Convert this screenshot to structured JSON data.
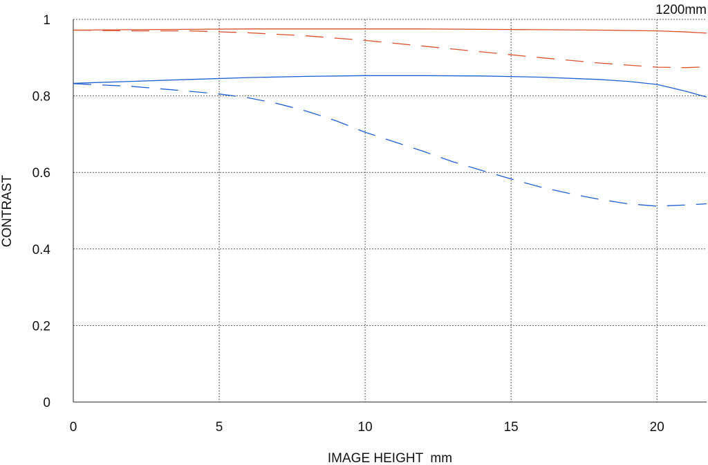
{
  "chart_data": {
    "type": "line",
    "title": "",
    "corner_label": "1200mm",
    "xlabel": "IMAGE HEIGHT  mm",
    "ylabel": "CONTRAST",
    "xlim": [
      0,
      21.7
    ],
    "ylim": [
      0,
      1
    ],
    "xticks": [
      0,
      5,
      10,
      15,
      20
    ],
    "xtick_labels": [
      "0",
      "5",
      "10",
      "15",
      "20"
    ],
    "yticks": [
      0,
      0.2,
      0.4,
      0.6,
      0.8,
      1
    ],
    "ytick_labels": [
      "0",
      "0.2",
      "0.4",
      "0.6",
      "0.8",
      "1"
    ],
    "grid": true,
    "legend": "none",
    "series": [
      {
        "color": "#d9502b",
        "dash": "solid",
        "x": [
          0,
          2,
          4,
          6,
          8,
          10,
          12,
          14,
          16,
          18,
          20,
          21,
          21.7
        ],
        "y": [
          0.972,
          0.973,
          0.974,
          0.975,
          0.975,
          0.975,
          0.975,
          0.974,
          0.973,
          0.972,
          0.97,
          0.967,
          0.964
        ]
      },
      {
        "color": "#d9502b",
        "dash": "dashed",
        "x": [
          0,
          2,
          4,
          6,
          8,
          10,
          12,
          14,
          16,
          18,
          20,
          21,
          21.7
        ],
        "y": [
          0.972,
          0.97,
          0.97,
          0.965,
          0.957,
          0.945,
          0.93,
          0.915,
          0.9,
          0.886,
          0.875,
          0.874,
          0.876
        ]
      },
      {
        "color": "#1a5fcf",
        "dash": "solid",
        "x": [
          0,
          2,
          4,
          6,
          8,
          10,
          12,
          14,
          16,
          18,
          19,
          20,
          21,
          21.7
        ],
        "y": [
          0.833,
          0.838,
          0.843,
          0.848,
          0.851,
          0.853,
          0.853,
          0.852,
          0.849,
          0.843,
          0.838,
          0.83,
          0.812,
          0.797
        ]
      },
      {
        "color": "#1a5fcf",
        "dash": "dashed",
        "x": [
          0,
          2,
          4,
          5,
          6,
          7,
          8,
          9,
          10,
          11,
          12,
          13,
          14,
          15,
          16,
          17,
          18,
          19,
          20,
          21,
          21.7
        ],
        "y": [
          0.832,
          0.825,
          0.812,
          0.805,
          0.795,
          0.78,
          0.76,
          0.735,
          0.705,
          0.68,
          0.655,
          0.628,
          0.605,
          0.583,
          0.562,
          0.545,
          0.53,
          0.518,
          0.512,
          0.515,
          0.518
        ]
      }
    ]
  }
}
